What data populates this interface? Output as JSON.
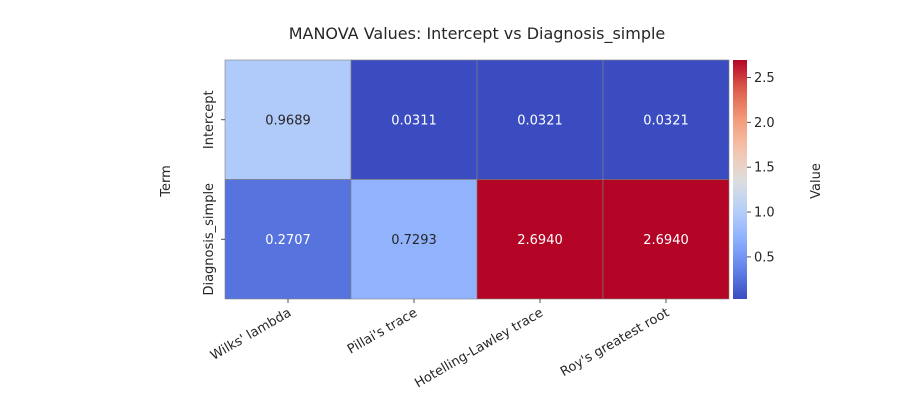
{
  "chart_data": {
    "type": "heatmap",
    "title": "MANOVA Values: Intercept vs Diagnosis_simple",
    "xlabel": "",
    "ylabel": "Term",
    "columns": [
      "Wilks' lambda",
      "Pillai's trace",
      "Hotelling-Lawley trace",
      "Roy's greatest root"
    ],
    "rows": [
      "Intercept",
      "Diagnosis_simple"
    ],
    "values": [
      [
        0.9689,
        0.0311,
        0.0321,
        0.0321
      ],
      [
        0.2707,
        0.7293,
        2.694,
        2.694
      ]
    ],
    "value_labels": [
      [
        "0.9689",
        "0.0311",
        "0.0321",
        "0.0321"
      ],
      [
        "0.2707",
        "0.7293",
        "2.6940",
        "2.6940"
      ]
    ],
    "colorbar": {
      "label": "Value",
      "ticks": [
        0.5,
        1.0,
        1.5,
        2.0,
        2.5
      ],
      "tick_labels": [
        "0.5",
        "1.0",
        "1.5",
        "2.0",
        "2.5"
      ],
      "range": [
        0.0311,
        2.694
      ]
    },
    "colormap": "coolwarm",
    "cell_border_color": "#808080"
  }
}
